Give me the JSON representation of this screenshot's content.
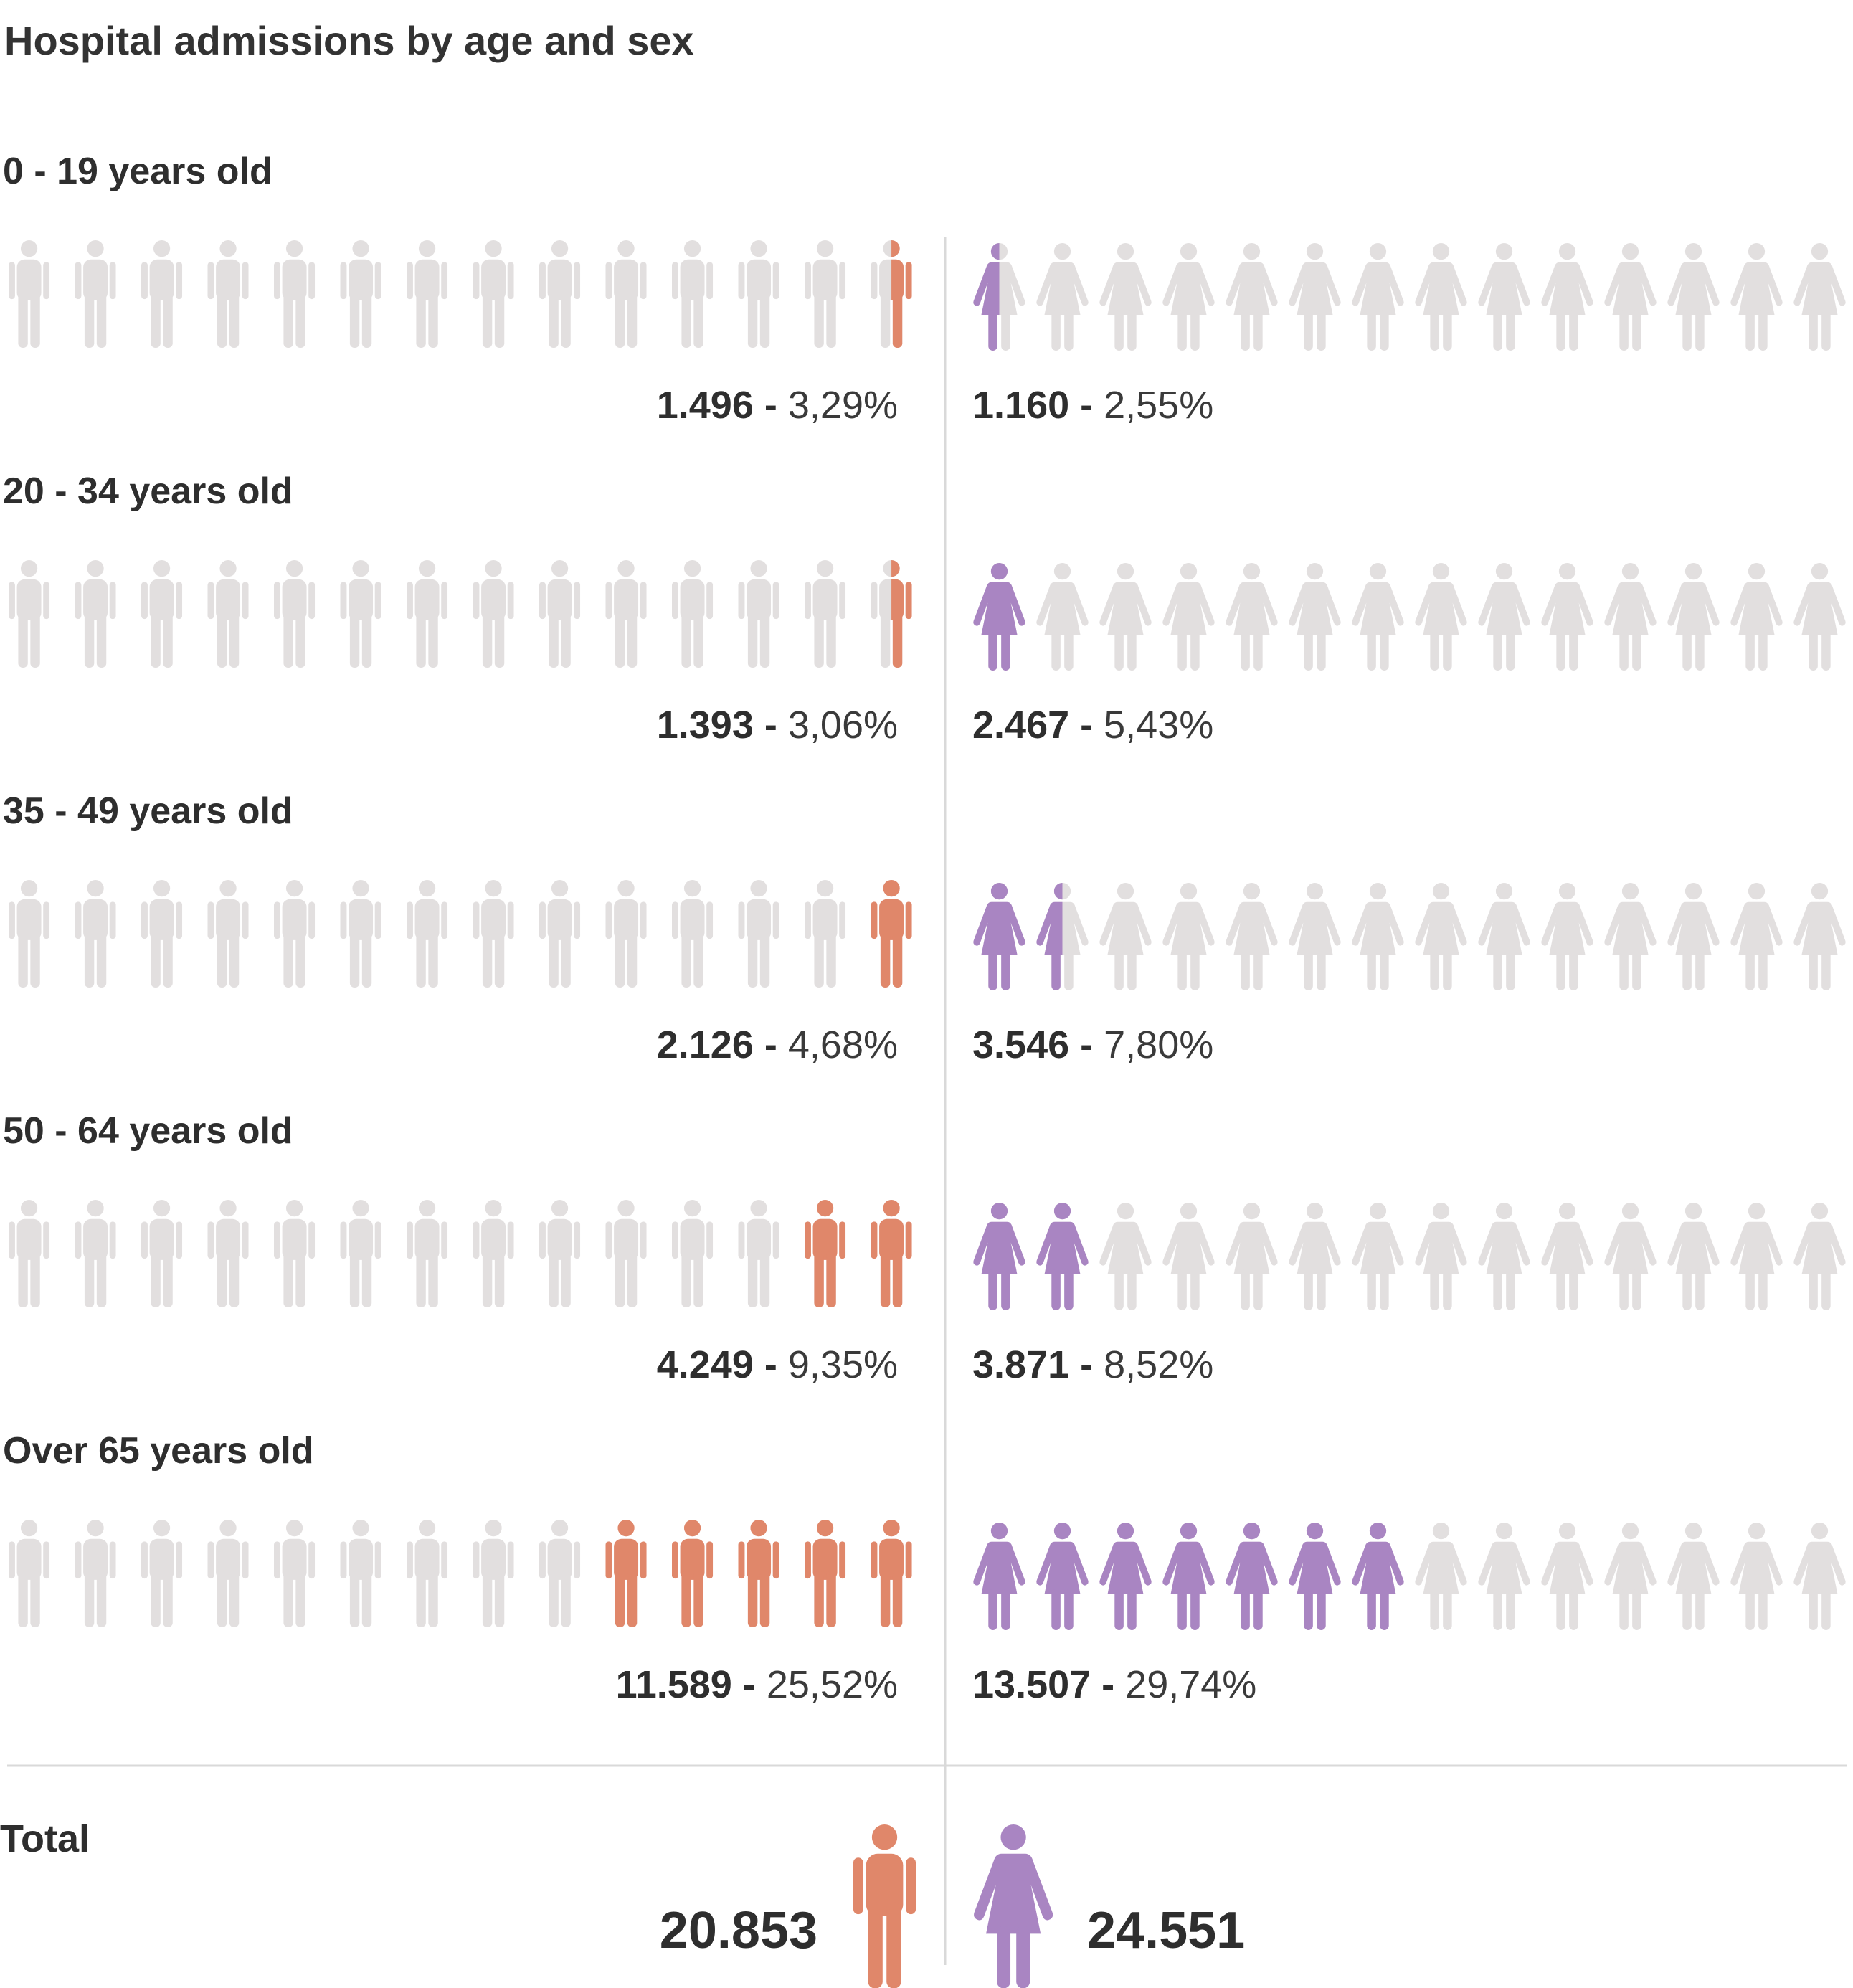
{
  "chart_data": {
    "type": "pictogram",
    "title": "Hospital admissions by age and sex",
    "icons_per_side": 14,
    "colors": {
      "male": "#e0876a",
      "female": "#a985c2",
      "empty": "#e2dfdf",
      "divider": "#d9d9d9"
    },
    "groups": [
      {
        "label": "0 - 19 years old",
        "male": {
          "value": "1.496",
          "separator": " - ",
          "percent": "3,29%",
          "filled_icons": 0.5
        },
        "female": {
          "value": "1.160",
          "separator": " - ",
          "percent": "2,55%",
          "filled_icons": 0.5
        }
      },
      {
        "label": "20 - 34 years old",
        "male": {
          "value": "1.393",
          "separator": " - ",
          "percent": "3,06%",
          "filled_icons": 0.5
        },
        "female": {
          "value": "2.467",
          "separator": " - ",
          "percent": "5,43%",
          "filled_icons": 1
        }
      },
      {
        "label": "35 - 49 years old",
        "male": {
          "value": "2.126",
          "separator": " - ",
          "percent": "4,68%",
          "filled_icons": 1
        },
        "female": {
          "value": "3.546",
          "separator": " - ",
          "percent": "7,80%",
          "filled_icons": 1.5
        }
      },
      {
        "label": "50 - 64 years old",
        "male": {
          "value": "4.249",
          "separator": " - ",
          "percent": "9,35%",
          "filled_icons": 2
        },
        "female": {
          "value": "3.871",
          "separator": " - ",
          "percent": "8,52%",
          "filled_icons": 2
        }
      },
      {
        "label": "Over 65 years old",
        "male": {
          "value": "11.589",
          "separator": " - ",
          "percent": "25,52%",
          "filled_icons": 5
        },
        "female": {
          "value": "13.507",
          "separator": " - ",
          "percent": "29,74%",
          "filled_icons": 7
        }
      }
    ],
    "total": {
      "label": "Total",
      "male": "20.853",
      "female": "24.551"
    }
  }
}
